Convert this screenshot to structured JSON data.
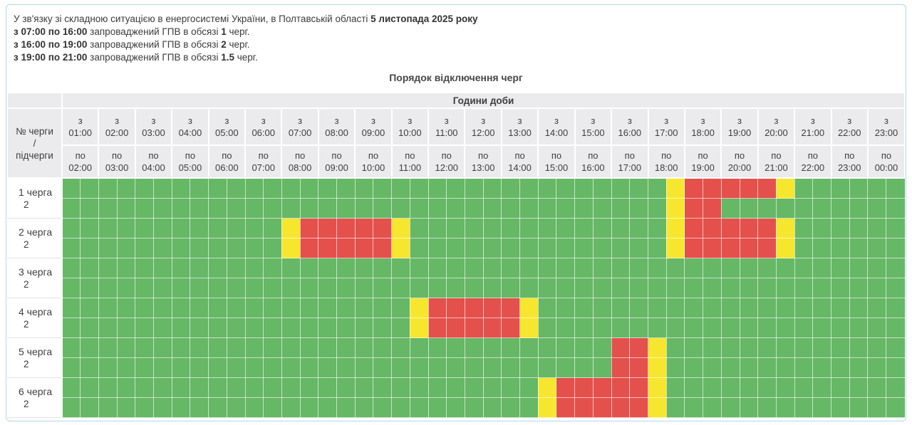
{
  "intro": {
    "lines": [
      [
        {
          "text": "У зв'язку зі складною ситуацією в енергосистемі України, в Полтавській області ",
          "bold": false
        },
        {
          "text": "5 листопада 2025 року",
          "bold": true
        }
      ],
      [
        {
          "text": "з 07:00 по 16:00",
          "bold": true
        },
        {
          "text": " запроваджений ГПВ в обсязі ",
          "bold": false
        },
        {
          "text": "1",
          "bold": true
        },
        {
          "text": " черг.",
          "bold": false
        }
      ],
      [
        {
          "text": "з 16:00 по 19:00",
          "bold": true
        },
        {
          "text": " запроваджений ГПВ в обсязі ",
          "bold": false
        },
        {
          "text": "2",
          "bold": true
        },
        {
          "text": " черг.",
          "bold": false
        }
      ],
      [
        {
          "text": "з 19:00 по 21:00",
          "bold": true
        },
        {
          "text": " запроваджений ГПВ в обсязі ",
          "bold": false
        },
        {
          "text": "1.5",
          "bold": true
        },
        {
          "text": " черг.",
          "bold": false
        }
      ]
    ]
  },
  "title": "Порядок відключення черг",
  "colors": {
    "on": "#66b766",
    "off": "#e4504c",
    "maybe": "#f7e62e",
    "header_bg": "#ebebee",
    "widget_border": "#b3d7ea"
  },
  "chart_data": {
    "type": "heatmap",
    "title": "Порядок відключення черг",
    "x_axis_title": "Години доби",
    "corner_lines": [
      "№ черги",
      "/",
      "підчерги"
    ],
    "from_prefix": "з",
    "to_prefix": "по",
    "slot_minutes": 30,
    "day_start": "01:00",
    "day_end": "00:00",
    "hours": [
      {
        "from": "01:00",
        "to": "02:00"
      },
      {
        "from": "02:00",
        "to": "03:00"
      },
      {
        "from": "03:00",
        "to": "04:00"
      },
      {
        "from": "04:00",
        "to": "05:00"
      },
      {
        "from": "05:00",
        "to": "06:00"
      },
      {
        "from": "06:00",
        "to": "07:00"
      },
      {
        "from": "07:00",
        "to": "08:00"
      },
      {
        "from": "08:00",
        "to": "09:00"
      },
      {
        "from": "09:00",
        "to": "10:00"
      },
      {
        "from": "10:00",
        "to": "11:00"
      },
      {
        "from": "11:00",
        "to": "12:00"
      },
      {
        "from": "12:00",
        "to": "13:00"
      },
      {
        "from": "13:00",
        "to": "14:00"
      },
      {
        "from": "14:00",
        "to": "15:00"
      },
      {
        "from": "15:00",
        "to": "16:00"
      },
      {
        "from": "16:00",
        "to": "17:00"
      },
      {
        "from": "17:00",
        "to": "18:00"
      },
      {
        "from": "18:00",
        "to": "19:00"
      },
      {
        "from": "19:00",
        "to": "20:00"
      },
      {
        "from": "20:00",
        "to": "21:00"
      },
      {
        "from": "21:00",
        "to": "22:00"
      },
      {
        "from": "22:00",
        "to": "23:00"
      },
      {
        "from": "23:00",
        "to": "00:00"
      }
    ],
    "queues": [
      {
        "label": "1 черга",
        "subrows": [
          {
            "sub": "1",
            "segments": [
              {
                "from": "17:30",
                "to": "18:00",
                "state": "maybe"
              },
              {
                "from": "18:00",
                "to": "20:30",
                "state": "off"
              },
              {
                "from": "20:30",
                "to": "21:00",
                "state": "maybe"
              }
            ]
          },
          {
            "sub": "2",
            "segments": [
              {
                "from": "17:30",
                "to": "18:00",
                "state": "maybe"
              },
              {
                "from": "18:00",
                "to": "19:00",
                "state": "off"
              }
            ]
          }
        ]
      },
      {
        "label": "2 черга",
        "subrows": [
          {
            "sub": "1",
            "segments": [
              {
                "from": "07:00",
                "to": "07:30",
                "state": "maybe"
              },
              {
                "from": "07:30",
                "to": "10:00",
                "state": "off"
              },
              {
                "from": "10:00",
                "to": "10:30",
                "state": "maybe"
              },
              {
                "from": "17:30",
                "to": "18:00",
                "state": "maybe"
              },
              {
                "from": "18:00",
                "to": "20:30",
                "state": "off"
              },
              {
                "from": "20:30",
                "to": "21:00",
                "state": "maybe"
              }
            ]
          },
          {
            "sub": "2",
            "segments": [
              {
                "from": "07:00",
                "to": "07:30",
                "state": "maybe"
              },
              {
                "from": "07:30",
                "to": "10:00",
                "state": "off"
              },
              {
                "from": "10:00",
                "to": "10:30",
                "state": "maybe"
              },
              {
                "from": "17:30",
                "to": "18:00",
                "state": "maybe"
              },
              {
                "from": "18:00",
                "to": "20:30",
                "state": "off"
              },
              {
                "from": "20:30",
                "to": "21:00",
                "state": "maybe"
              }
            ]
          }
        ]
      },
      {
        "label": "3 черга",
        "subrows": [
          {
            "sub": "1",
            "segments": []
          },
          {
            "sub": "2",
            "segments": []
          }
        ]
      },
      {
        "label": "4 черга",
        "subrows": [
          {
            "sub": "1",
            "segments": [
              {
                "from": "10:30",
                "to": "11:00",
                "state": "maybe"
              },
              {
                "from": "11:00",
                "to": "13:30",
                "state": "off"
              },
              {
                "from": "13:30",
                "to": "14:00",
                "state": "maybe"
              }
            ]
          },
          {
            "sub": "2",
            "segments": [
              {
                "from": "10:30",
                "to": "11:00",
                "state": "maybe"
              },
              {
                "from": "11:00",
                "to": "13:30",
                "state": "off"
              },
              {
                "from": "13:30",
                "to": "14:00",
                "state": "maybe"
              }
            ]
          }
        ]
      },
      {
        "label": "5 черга",
        "subrows": [
          {
            "sub": "1",
            "segments": [
              {
                "from": "16:00",
                "to": "17:00",
                "state": "off"
              },
              {
                "from": "17:00",
                "to": "17:30",
                "state": "maybe"
              }
            ]
          },
          {
            "sub": "2",
            "segments": [
              {
                "from": "16:00",
                "to": "17:00",
                "state": "off"
              },
              {
                "from": "17:00",
                "to": "17:30",
                "state": "maybe"
              }
            ]
          }
        ]
      },
      {
        "label": "6 черга",
        "subrows": [
          {
            "sub": "1",
            "segments": [
              {
                "from": "14:00",
                "to": "14:30",
                "state": "maybe"
              },
              {
                "from": "14:30",
                "to": "17:00",
                "state": "off"
              },
              {
                "from": "17:00",
                "to": "17:30",
                "state": "maybe"
              }
            ]
          },
          {
            "sub": "2",
            "segments": [
              {
                "from": "14:00",
                "to": "14:30",
                "state": "maybe"
              },
              {
                "from": "14:30",
                "to": "17:00",
                "state": "off"
              },
              {
                "from": "17:00",
                "to": "17:30",
                "state": "maybe"
              }
            ]
          }
        ]
      }
    ]
  }
}
